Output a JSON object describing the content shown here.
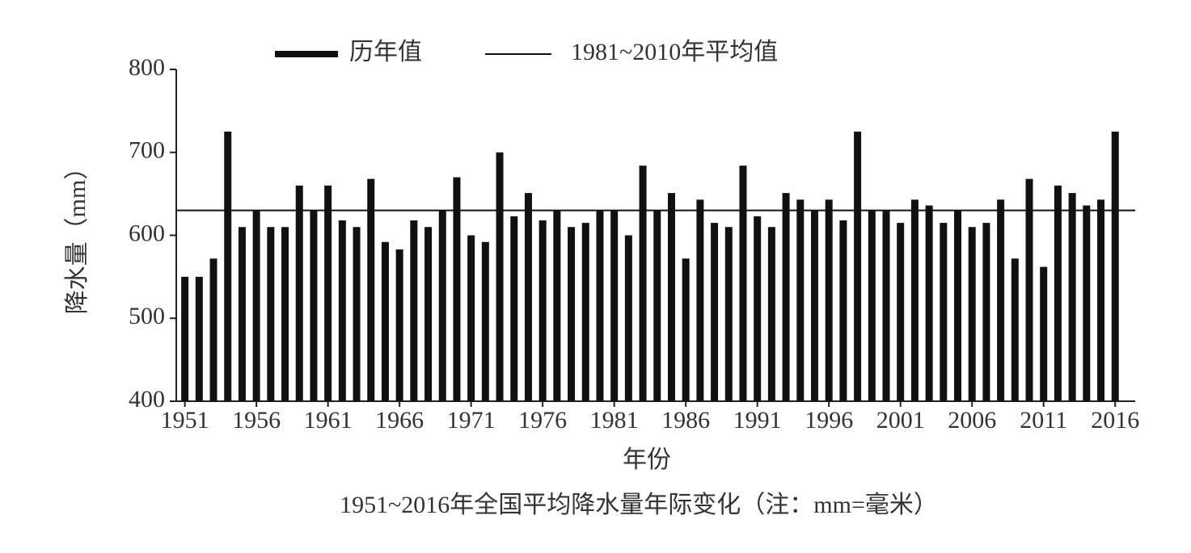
{
  "chart_data": {
    "type": "bar",
    "caption": "1951~2016年全国平均降水量年际变化（注：mm=毫米）",
    "x_label": "年份",
    "y_label": "降水量（mm）",
    "x": [
      1951,
      1952,
      1953,
      1954,
      1955,
      1956,
      1957,
      1958,
      1959,
      1960,
      1961,
      1962,
      1963,
      1964,
      1965,
      1966,
      1967,
      1968,
      1969,
      1970,
      1971,
      1972,
      1973,
      1974,
      1975,
      1976,
      1977,
      1978,
      1979,
      1980,
      1981,
      1982,
      1983,
      1984,
      1985,
      1986,
      1987,
      1988,
      1989,
      1990,
      1991,
      1992,
      1993,
      1994,
      1995,
      1996,
      1997,
      1998,
      1999,
      2000,
      2001,
      2002,
      2003,
      2004,
      2005,
      2006,
      2007,
      2008,
      2009,
      2010,
      2011,
      2012,
      2013,
      2014,
      2015,
      2016
    ],
    "series": [
      {
        "name": "历年值",
        "color": "#111111",
        "values": [
          550,
          550,
          572,
          725,
          610,
          630,
          610,
          610,
          660,
          630,
          660,
          618,
          610,
          668,
          592,
          583,
          618,
          610,
          630,
          670,
          600,
          592,
          700,
          623,
          651,
          618,
          630,
          610,
          615,
          630,
          630,
          600,
          684,
          630,
          651,
          572,
          643,
          615,
          610,
          684,
          623,
          610,
          651,
          643,
          630,
          643,
          618,
          725,
          630,
          630,
          615,
          643,
          636,
          615,
          630,
          610,
          615,
          643,
          572,
          668,
          562,
          660,
          651,
          636,
          643,
          725
        ]
      }
    ],
    "reference_line": {
      "name": "1981~2010年平均值",
      "value": 630,
      "color": "#111111"
    },
    "xlim": [
      1950.4,
      2017.4
    ],
    "xticks": [
      1951,
      1956,
      1961,
      1966,
      1971,
      1976,
      1981,
      1986,
      1991,
      1996,
      2001,
      2006,
      2011,
      2016
    ],
    "ylim": [
      400,
      800
    ],
    "yticks": [
      400,
      500,
      600,
      700,
      800
    ],
    "grid": false
  }
}
